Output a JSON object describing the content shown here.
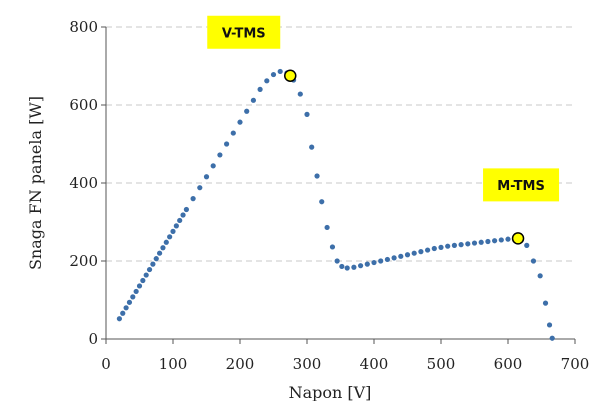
{
  "chart_data": {
    "type": "scatter",
    "title": "",
    "xlabel": "Napon [V]",
    "ylabel": "Snaga FN panela [W]",
    "xlim": [
      0,
      700
    ],
    "ylim": [
      0,
      800
    ],
    "x_ticks": [
      "0",
      "100",
      "200",
      "300",
      "400",
      "500",
      "600",
      "700"
    ],
    "y_ticks": [
      "0",
      "200",
      "400",
      "600",
      "800"
    ],
    "grid": "horizontal-dashed",
    "legend": "none",
    "series": [
      {
        "x": [
          20,
          25,
          30,
          35,
          40,
          45,
          50,
          55,
          60,
          65,
          70,
          75,
          80,
          85,
          90,
          95,
          100,
          105,
          110,
          115,
          120,
          130,
          140,
          150,
          160,
          170,
          180,
          190,
          200,
          210,
          220,
          230,
          240,
          250,
          260,
          270,
          280,
          290,
          300,
          307,
          315,
          322,
          330,
          338,
          345,
          352,
          360,
          370,
          380,
          390,
          400,
          410,
          420,
          430,
          440,
          450,
          460,
          470,
          480,
          490,
          500,
          510,
          520,
          530,
          540,
          550,
          560,
          570,
          580,
          590,
          600,
          610,
          618,
          628,
          638,
          648,
          656,
          662,
          666
        ],
        "y": [
          52,
          66,
          80,
          94,
          108,
          122,
          136,
          150,
          164,
          178,
          192,
          206,
          220,
          234,
          248,
          262,
          276,
          290,
          304,
          318,
          332,
          360,
          388,
          416,
          444,
          472,
          500,
          528,
          556,
          584,
          612,
          640,
          662,
          678,
          686,
          682,
          664,
          628,
          576,
          492,
          418,
          352,
          286,
          236,
          200,
          186,
          182,
          184,
          188,
          192,
          196,
          200,
          204,
          208,
          212,
          216,
          220,
          224,
          228,
          232,
          235,
          238,
          240,
          242,
          244,
          246,
          248,
          250,
          252,
          254,
          256,
          258,
          258,
          240,
          200,
          162,
          92,
          36,
          2
        ]
      }
    ],
    "colors": {
      "points": "#3d6fa9",
      "callout_fill": "#ffff00",
      "marker_fill": "#ffff00",
      "marker_stroke": "#000000",
      "grid": "#c8c8c8"
    },
    "annotations": [
      {
        "label": "V-TMS",
        "x": 275,
        "y": 675
      },
      {
        "label": "M-TMS",
        "x": 615,
        "y": 258
      }
    ]
  }
}
